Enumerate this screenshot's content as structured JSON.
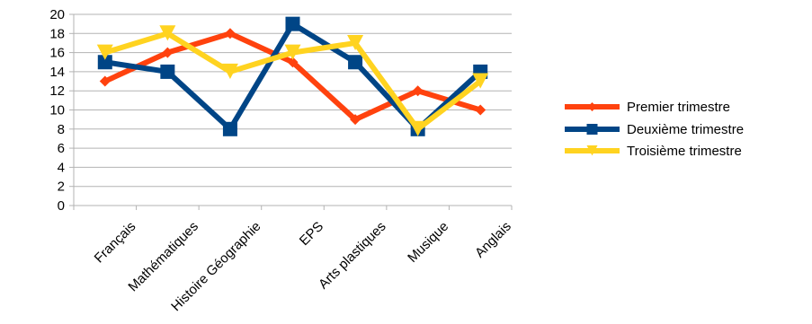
{
  "chart_data": {
    "type": "line",
    "categories": [
      "Français",
      "Mathématiques",
      "Histoire Géographie",
      "EPS",
      "Arts plastiques",
      "Musique",
      "Anglais"
    ],
    "series": [
      {
        "name": "Premier trimestre",
        "color": "#ff420e",
        "marker": "diamond",
        "values": [
          13,
          16,
          18,
          15,
          9,
          12,
          10
        ]
      },
      {
        "name": "Deuxième trimestre",
        "color": "#004586",
        "marker": "square",
        "values": [
          15,
          14,
          8,
          19,
          15,
          8,
          14
        ]
      },
      {
        "name": "Troisième trimestre",
        "color": "#ffd320",
        "marker": "triangle-down",
        "values": [
          16,
          18,
          14,
          16,
          17,
          8,
          13
        ]
      }
    ],
    "ylim": [
      0,
      20
    ],
    "yticks": [
      0,
      2,
      4,
      6,
      8,
      10,
      12,
      14,
      16,
      18,
      20
    ],
    "grid": "horizontal",
    "legend_position": "right"
  }
}
